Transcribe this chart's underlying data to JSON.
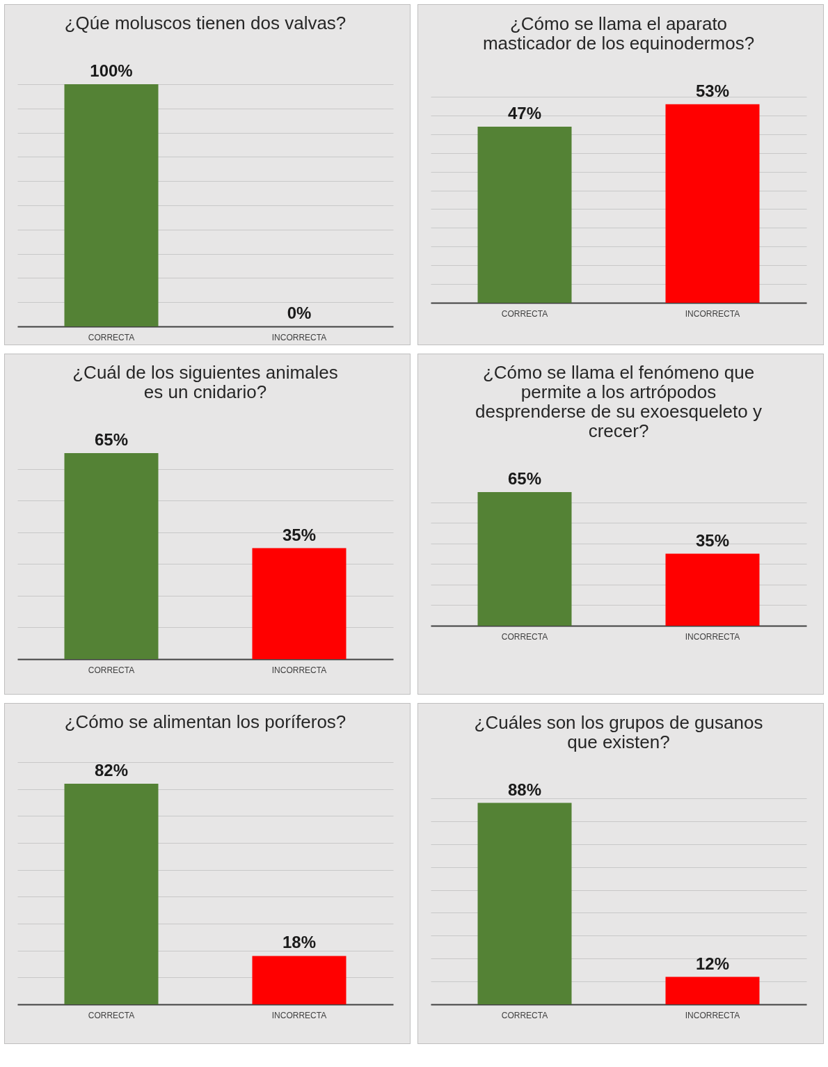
{
  "chart_data": [
    {
      "type": "bar",
      "title": "¿Qúe moluscos tienen dos valvas?",
      "categories": [
        "CORRECTA",
        "INCORRECTA"
      ],
      "values": [
        100,
        0
      ],
      "colors": [
        "#548235",
        "#ff0000"
      ],
      "value_labels": [
        "100%",
        "0%"
      ],
      "grid": "y",
      "tick_labels": "x"
    },
    {
      "type": "bar",
      "title": "¿Cómo se llama el aparato masticador de los equinodermos?",
      "categories": [
        "CORRECTA",
        "INCORRECTA"
      ],
      "values": [
        47,
        53
      ],
      "colors": [
        "#548235",
        "#ff0000"
      ],
      "value_labels": [
        "47%",
        "53%"
      ],
      "grid": "y",
      "tick_labels": "x"
    },
    {
      "type": "bar",
      "title": "¿Cuál de los siguientes animales es un cnidario?",
      "categories": [
        "CORRECTA",
        "INCORRECTA"
      ],
      "values": [
        65,
        35
      ],
      "colors": [
        "#548235",
        "#ff0000"
      ],
      "value_labels": [
        "65%",
        "35%"
      ],
      "grid": "y",
      "tick_labels": "x"
    },
    {
      "type": "bar",
      "title": "¿Cómo se llama el fenómeno que permite a  los artrópodos desprenderse de su exoesqueleto y crecer?",
      "categories": [
        "CORRECTA",
        "INCORRECTA"
      ],
      "values": [
        65,
        35
      ],
      "colors": [
        "#548235",
        "#ff0000"
      ],
      "value_labels": [
        "65%",
        "35%"
      ],
      "grid": "y",
      "tick_labels": "x"
    },
    {
      "type": "bar",
      "title": "¿Cómo se alimentan los poríferos?",
      "categories": [
        "CORRECTA",
        "INCORRECTA"
      ],
      "values": [
        82,
        18
      ],
      "colors": [
        "#548235",
        "#ff0000"
      ],
      "value_labels": [
        "82%",
        "18%"
      ],
      "grid": "y",
      "tick_labels": "x"
    },
    {
      "type": "bar",
      "title": "¿Cuáles son los grupos de gusanos que existen?",
      "categories": [
        "CORRECTA",
        "INCORRECTA"
      ],
      "values": [
        88,
        12
      ],
      "colors": [
        "#548235",
        "#ff0000"
      ],
      "value_labels": [
        "88%",
        "12%"
      ],
      "grid": "y",
      "tick_labels": "x"
    }
  ]
}
